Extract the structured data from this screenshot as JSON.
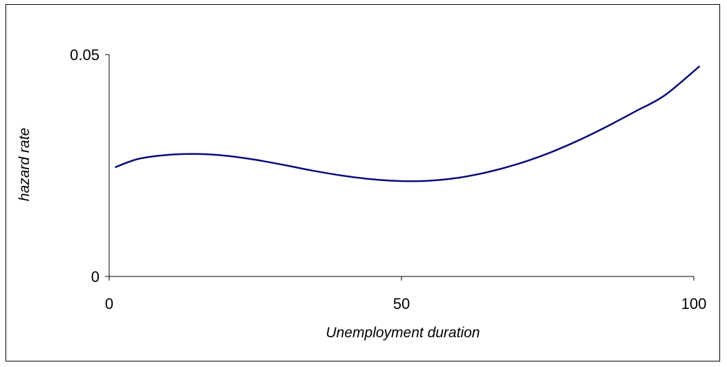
{
  "chart_data": {
    "type": "line",
    "title": "",
    "xlabel": "Unemployment duration",
    "ylabel": "hazard rate",
    "xlim": [
      0,
      100
    ],
    "ylim": [
      0,
      0.05
    ],
    "x_ticks": [
      {
        "value": 0,
        "label": "0"
      },
      {
        "value": 50,
        "label": "50"
      },
      {
        "value": 100,
        "label": "100"
      }
    ],
    "y_ticks": [
      {
        "value": 0,
        "label": "0"
      },
      {
        "value": 0.05,
        "label": "0.05"
      }
    ],
    "grid": false,
    "legend": "none",
    "series": [
      {
        "color": "#0a0a78",
        "x": [
          1,
          5,
          10,
          15,
          20,
          25,
          30,
          35,
          40,
          45,
          50,
          55,
          60,
          65,
          70,
          75,
          80,
          85,
          90,
          95,
          101
        ],
        "y": [
          0.0246,
          0.0265,
          0.0274,
          0.0276,
          0.0272,
          0.0263,
          0.0251,
          0.0238,
          0.0227,
          0.0219,
          0.0215,
          0.0216,
          0.0223,
          0.0236,
          0.0254,
          0.0277,
          0.0305,
          0.0337,
          0.0372,
          0.0408,
          0.0474
        ]
      }
    ]
  }
}
